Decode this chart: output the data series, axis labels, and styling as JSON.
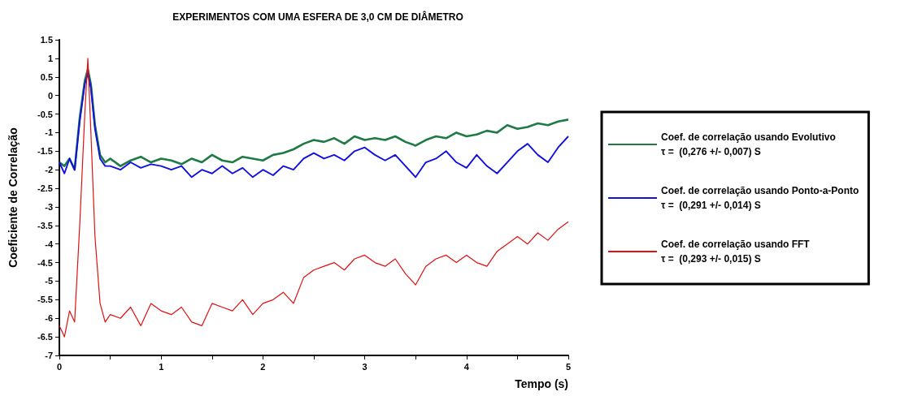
{
  "chart_data": {
    "type": "line",
    "title": "EXPERIMENTOS COM UMA ESFERA DE 3,0 CM DE DIÂMETRO",
    "xlabel": "Tempo (s)",
    "ylabel": "Coeficiente de Correlação",
    "x": [
      0,
      0.05,
      0.1,
      0.15,
      0.2,
      0.25,
      0.28,
      0.31,
      0.35,
      0.4,
      0.45,
      0.5,
      0.6,
      0.7,
      0.8,
      0.9,
      1.0,
      1.1,
      1.2,
      1.3,
      1.4,
      1.5,
      1.6,
      1.7,
      1.8,
      1.9,
      2.0,
      2.1,
      2.2,
      2.3,
      2.4,
      2.5,
      2.6,
      2.7,
      2.8,
      2.9,
      3.0,
      3.1,
      3.2,
      3.3,
      3.4,
      3.5,
      3.6,
      3.7,
      3.8,
      3.9,
      4.0,
      4.1,
      4.2,
      4.3,
      4.4,
      4.5,
      4.6,
      4.7,
      4.8,
      4.9,
      5.0
    ],
    "series": [
      {
        "name": "Coef. de correlação usando Evolutivo\nτ =  (0,276 +/- 0,007) S",
        "color": "#1f7a45",
        "values": [
          -1.8,
          -1.9,
          -1.7,
          -2.0,
          -0.6,
          0.4,
          0.7,
          0.3,
          -0.8,
          -1.6,
          -1.8,
          -1.7,
          -1.9,
          -1.75,
          -1.65,
          -1.8,
          -1.7,
          -1.75,
          -1.85,
          -1.7,
          -1.8,
          -1.6,
          -1.75,
          -1.8,
          -1.65,
          -1.7,
          -1.75,
          -1.6,
          -1.55,
          -1.45,
          -1.3,
          -1.2,
          -1.25,
          -1.15,
          -1.3,
          -1.1,
          -1.2,
          -1.15,
          -1.2,
          -1.1,
          -1.25,
          -1.35,
          -1.2,
          -1.1,
          -1.15,
          -1.0,
          -1.1,
          -1.05,
          -0.95,
          -1.0,
          -0.8,
          -0.9,
          -0.85,
          -0.75,
          -0.8,
          -0.7,
          -0.65
        ]
      },
      {
        "name": "Coef. de correlação usando Ponto-a-Ponto\nτ =  (0,291 +/- 0,014) S",
        "color": "#1010e0",
        "values": [
          -1.8,
          -2.1,
          -1.7,
          -2.0,
          -0.7,
          0.3,
          0.6,
          0.2,
          -0.9,
          -1.7,
          -1.9,
          -1.9,
          -2.0,
          -1.8,
          -1.95,
          -1.85,
          -1.9,
          -2.0,
          -1.9,
          -2.2,
          -2.0,
          -2.1,
          -1.9,
          -2.1,
          -1.95,
          -2.2,
          -2.0,
          -2.15,
          -1.9,
          -2.0,
          -1.7,
          -1.55,
          -1.7,
          -1.6,
          -1.75,
          -1.5,
          -1.4,
          -1.6,
          -1.75,
          -1.6,
          -1.9,
          -2.2,
          -1.8,
          -1.7,
          -1.5,
          -1.8,
          -1.95,
          -1.6,
          -1.9,
          -2.1,
          -1.8,
          -1.5,
          -1.3,
          -1.6,
          -1.8,
          -1.4,
          -1.1
        ]
      },
      {
        "name": "Coef. de correlação usando FFT\nτ =  (0,293 +/- 0,015) S",
        "color": "#e01010",
        "values": [
          -6.2,
          -6.5,
          -5.8,
          -6.1,
          -3.5,
          -0.5,
          1.0,
          -1.0,
          -3.8,
          -5.6,
          -6.1,
          -5.9,
          -6.0,
          -5.7,
          -6.2,
          -5.6,
          -5.8,
          -5.9,
          -5.7,
          -6.1,
          -6.2,
          -5.6,
          -5.7,
          -5.8,
          -5.5,
          -5.9,
          -5.6,
          -5.5,
          -5.3,
          -5.6,
          -4.9,
          -4.7,
          -4.6,
          -4.5,
          -4.7,
          -4.4,
          -4.3,
          -4.5,
          -4.6,
          -4.4,
          -4.8,
          -5.1,
          -4.6,
          -4.4,
          -4.3,
          -4.5,
          -4.3,
          -4.5,
          -4.6,
          -4.2,
          -4.0,
          -3.8,
          -4.0,
          -3.7,
          -3.9,
          -3.6,
          -3.4
        ]
      }
    ],
    "xlim": [
      0,
      5
    ],
    "xticks": [
      0,
      {
        "value": 0.5,
        "label": null
      },
      1,
      {
        "value": 1.5,
        "label": null
      },
      2,
      {
        "value": 2.5,
        "label": null
      },
      3,
      {
        "value": 3.5,
        "label": null
      },
      4,
      {
        "value": 4.5,
        "label": null
      },
      5
    ],
    "ylim": [
      -7,
      1.5
    ],
    "yticks": [
      -7,
      -6.5,
      -6,
      -5.5,
      -5,
      -4.5,
      -4,
      -3.5,
      -3,
      -2.5,
      -2,
      -1.5,
      -1,
      -0.5,
      0,
      0.5,
      1,
      1.5
    ],
    "grid": false,
    "legend": "right",
    "marker": "none",
    "line_style": "solid"
  }
}
